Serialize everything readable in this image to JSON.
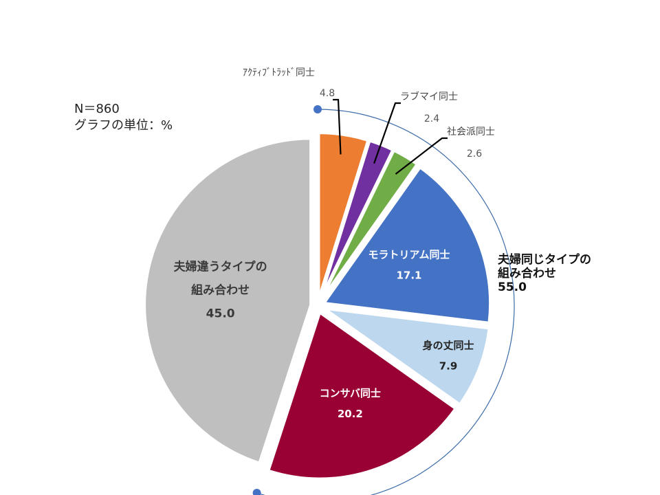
{
  "notes": {
    "sample_size": "N＝860",
    "unit": "グラフの単位：%"
  },
  "chart_data": {
    "type": "pie",
    "title": "",
    "unit": "%",
    "slices": [
      {
        "label": "ｱｸﾃｨﾌﾞﾄﾗｯﾄﾞ同士",
        "value": 4.8,
        "value_label": "4.8",
        "color": "#ED7D31",
        "label_position": "outside"
      },
      {
        "label": "ラブマイ同士",
        "value": 2.4,
        "value_label": "2.4",
        "color": "#7030A0",
        "label_position": "outside"
      },
      {
        "label": "社会派同士",
        "value": 2.6,
        "value_label": "2.6",
        "color": "#70AD47",
        "label_position": "outside"
      },
      {
        "label": "モラトリアム同士",
        "value": 17.1,
        "value_label": "17.1",
        "color": "#4472C4",
        "label_position": "inside"
      },
      {
        "label": "身の丈同士",
        "value": 7.9,
        "value_label": "7.9",
        "color": "#BDD7EE",
        "label_position": "inside"
      },
      {
        "label": "コンサバ同士",
        "value": 20.2,
        "value_label": "20.2",
        "color": "#990033",
        "label_position": "inside"
      },
      {
        "label_lines": [
          "夫婦違うタイプの",
          "組み合わせ"
        ],
        "value": 45.0,
        "value_label": "45.0",
        "color": "#BFBFBF",
        "label_position": "inside"
      }
    ],
    "group_annotation": {
      "label_lines": [
        "夫婦同じタイプの",
        "組み合わせ"
      ],
      "value_label": "55.0"
    }
  }
}
